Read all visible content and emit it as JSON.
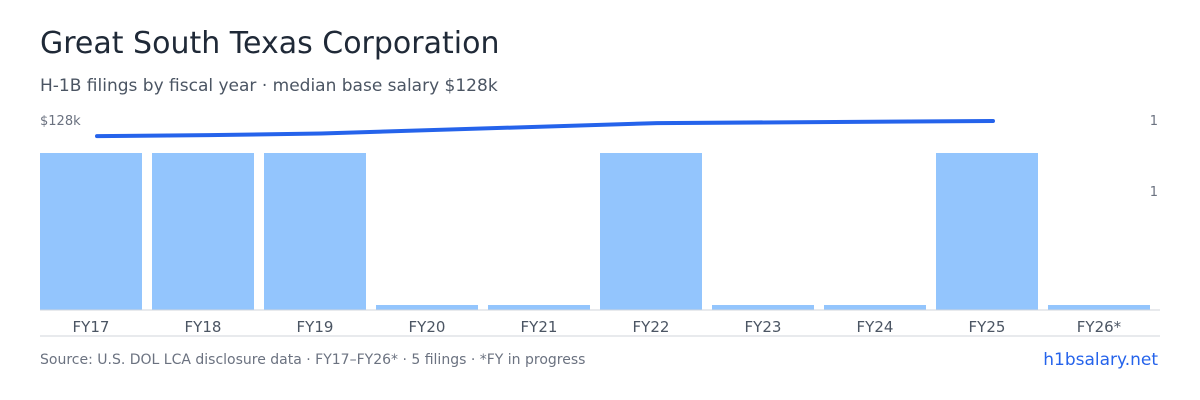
{
  "header": {
    "title": "Great South Texas Corporation",
    "subtitle": "H-1B filings by fiscal year · median base salary $128k"
  },
  "footer": {
    "source": "Source: U.S. DOL LCA disclosure data · FY17–FY26* · 5 filings · *FY in progress",
    "brand": "h1bsalary.net"
  },
  "colors": {
    "bar": "#93c5fd",
    "line": "#2563eb",
    "axis": "#d1d5db"
  },
  "chart_data": {
    "type": "bar",
    "categories": [
      "FY17",
      "FY18",
      "FY19",
      "FY20",
      "FY21",
      "FY22",
      "FY23",
      "FY24",
      "FY25",
      "FY26*"
    ],
    "series": [
      {
        "type": "bar",
        "axis": "right",
        "values": [
          1,
          1,
          1,
          0,
          0,
          1,
          0,
          0,
          1,
          0
        ]
      },
      {
        "type": "line",
        "axis": "left",
        "points": [
          {
            "x": "FY17",
            "y": 117.7
          },
          {
            "x": "FY18",
            "y": 118.4
          },
          {
            "x": "FY19",
            "y": 119.5
          },
          {
            "x": "FY22",
            "y": 126.6
          },
          {
            "x": "FY25",
            "y": 128
          }
        ]
      }
    ],
    "left_axis_label": "$128k",
    "left_axis_max": 128,
    "right_axis_ticks": [
      "1",
      "1"
    ],
    "right_axis_max": 1,
    "grid": false
  }
}
